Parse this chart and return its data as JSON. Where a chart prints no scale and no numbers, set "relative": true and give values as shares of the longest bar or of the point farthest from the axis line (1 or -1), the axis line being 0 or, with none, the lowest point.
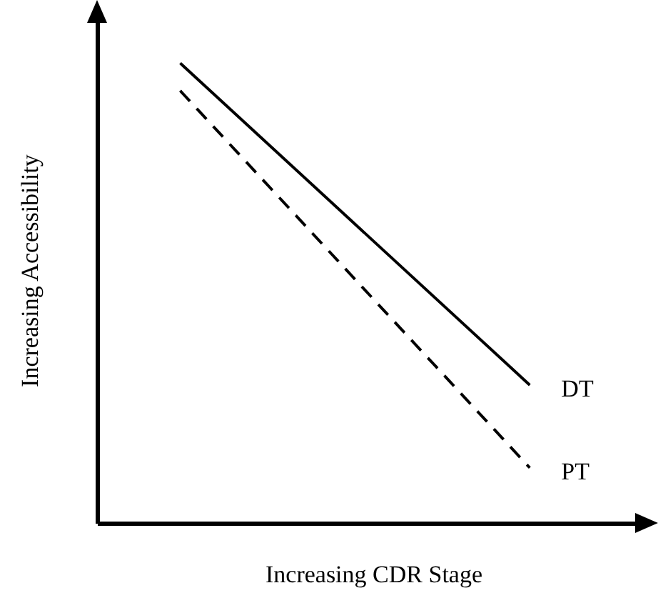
{
  "chart_data": {
    "type": "line",
    "relative": true,
    "xlabel": "Increasing CDR Stage",
    "ylabel": "Increasing Accessibility",
    "categories": [
      null,
      null
    ],
    "tick_labels": false,
    "grid": false,
    "legend": false,
    "marker": "none",
    "series": [
      {
        "name": "DT",
        "color": "#000000",
        "line_style": "solid",
        "values": [
          1,
          0.3
        ]
      },
      {
        "name": "PT",
        "color": "#000000",
        "line_style": "dashed",
        "values": [
          0.94,
          0.12
        ]
      }
    ]
  }
}
